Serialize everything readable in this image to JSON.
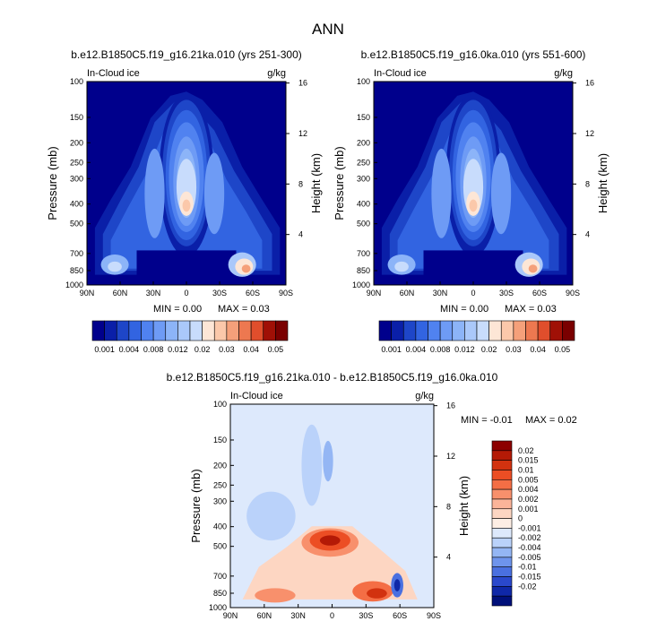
{
  "page": {
    "title": "ANN"
  },
  "chart_data": [
    {
      "type": "heatmap",
      "title": "b.e12.B1850C5.f19_g16.21ka.010 (yrs 251-300)",
      "variable": "In-Cloud ice",
      "units": "g/kg",
      "ylabel": "Pressure (mb)",
      "y2label": "Height (km)",
      "x_ticks": [
        "90N",
        "60N",
        "30N",
        "0",
        "30S",
        "60S",
        "90S"
      ],
      "y_ticks": [
        "100",
        "150",
        "200",
        "250",
        "300",
        "400",
        "500",
        "700",
        "850",
        "1000"
      ],
      "y2_ticks": [
        "16",
        "12",
        "8",
        "4"
      ],
      "min_text": "MIN =   0.00",
      "max_text": "MAX =   0.03",
      "min": 0.0,
      "max": 0.03,
      "colorbar_labels": [
        "0.001",
        "0.004",
        "0.008",
        "0.012",
        "0.02",
        "0.03",
        "0.04",
        "0.05"
      ]
    },
    {
      "type": "heatmap",
      "title": "b.e12.B1850C5.f19_g16.0ka.010 (yrs 551-600)",
      "variable": "In-Cloud ice",
      "units": "g/kg",
      "ylabel": "Pressure (mb)",
      "y2label": "Height (km)",
      "x_ticks": [
        "90N",
        "60N",
        "30N",
        "0",
        "30S",
        "60S",
        "90S"
      ],
      "y_ticks": [
        "100",
        "150",
        "200",
        "250",
        "300",
        "400",
        "500",
        "700",
        "850",
        "1000"
      ],
      "y2_ticks": [
        "16",
        "12",
        "8",
        "4"
      ],
      "min_text": "MIN =   0.00",
      "max_text": "MAX =   0.03",
      "min": 0.0,
      "max": 0.03,
      "colorbar_labels": [
        "0.001",
        "0.004",
        "0.008",
        "0.012",
        "0.02",
        "0.03",
        "0.04",
        "0.05"
      ]
    },
    {
      "type": "heatmap",
      "title": "b.e12.B1850C5.f19_g16.21ka.010 - b.e12.B1850C5.f19_g16.0ka.010",
      "variable": "In-Cloud ice",
      "units": "g/kg",
      "ylabel": "Pressure (mb)",
      "y2label": "Height (km)",
      "x_ticks": [
        "90N",
        "60N",
        "30N",
        "0",
        "30S",
        "60S",
        "90S"
      ],
      "y_ticks": [
        "100",
        "150",
        "200",
        "250",
        "300",
        "400",
        "500",
        "700",
        "850",
        "1000"
      ],
      "y2_ticks": [
        "16",
        "12",
        "8",
        "4"
      ],
      "min_text": "MIN =  -0.01",
      "max_text": "MAX =   0.02",
      "min": -0.01,
      "max": 0.02,
      "colorbar_labels": [
        "0.02",
        "0.015",
        "0.01",
        "0.005",
        "0.004",
        "0.002",
        "0.001",
        "0",
        "-0.001",
        "-0.002",
        "-0.004",
        "-0.005",
        "-0.01",
        "-0.015",
        "-0.02"
      ]
    }
  ],
  "colors": {
    "abs_scale": [
      "#00008c",
      "#0a1fa8",
      "#1e46c8",
      "#3264e1",
      "#5082f0",
      "#6e9bf5",
      "#8cb4f8",
      "#aac8fa",
      "#c8dcfc",
      "#e6eefd",
      "#fde6d6",
      "#fbc8aa",
      "#f5a07a",
      "#ed7850",
      "#e04e2c",
      "#c62a14",
      "#a01006",
      "#7a0000"
    ],
    "diff_scale": [
      "#8c0000",
      "#b41a06",
      "#d2320f",
      "#ec4e24",
      "#f46e45",
      "#f8906c",
      "#fbb499",
      "#fdd6c2",
      "#fdeee4",
      "#dde9fc",
      "#bad2fa",
      "#94b6f4",
      "#6e94ec",
      "#4a70e0",
      "#2a48cc",
      "#0f28a8",
      "#00107a"
    ]
  }
}
